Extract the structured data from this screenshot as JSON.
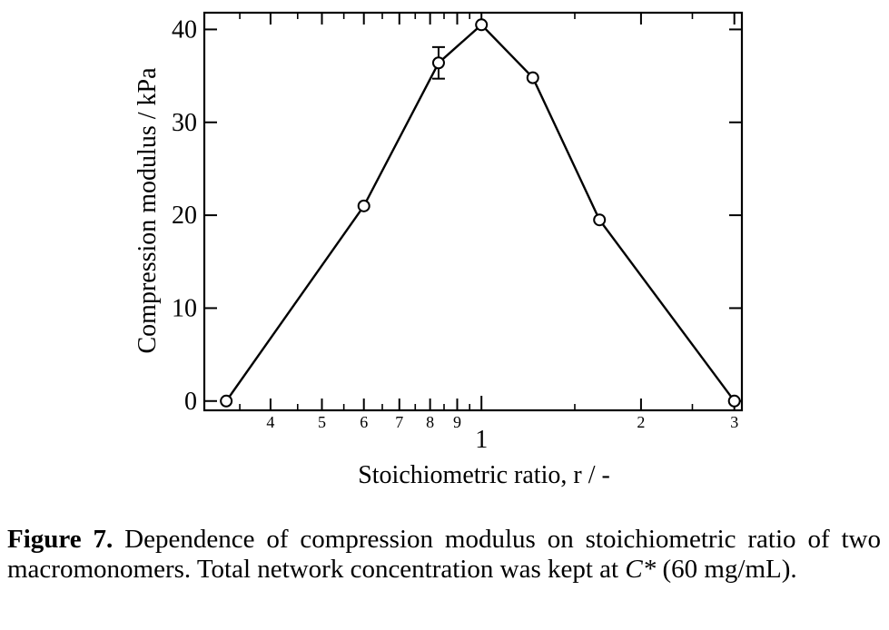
{
  "chart_data": {
    "type": "line",
    "xscale": "log",
    "xlabel": "Stoichiometric ratio, r / -",
    "ylabel": "Compression modulus / kPa",
    "xlim": [
      0.3,
      3.1
    ],
    "ylim": [
      -1,
      41.8
    ],
    "xticks_major": [
      {
        "value": 0.4,
        "label": "4"
      },
      {
        "value": 0.5,
        "label": "5"
      },
      {
        "value": 0.6,
        "label": "6"
      },
      {
        "value": 0.7,
        "label": "7"
      },
      {
        "value": 0.8,
        "label": "8"
      },
      {
        "value": 0.9,
        "label": "9"
      },
      {
        "value": 1.0,
        "label": "1"
      },
      {
        "value": 2.0,
        "label": "2"
      },
      {
        "value": 3.0,
        "label": "3"
      }
    ],
    "xticks_minor": [
      0.35,
      0.45,
      0.55,
      0.65,
      0.75,
      0.85,
      0.95,
      1.5,
      2.5
    ],
    "yticks": [
      0,
      10,
      20,
      30,
      40
    ],
    "series": [
      {
        "x": [
          0.33,
          0.6,
          0.83,
          1.0,
          1.25,
          1.67,
          3.0
        ],
        "y": [
          0,
          21.0,
          36.4,
          40.5,
          34.8,
          19.5,
          0
        ],
        "yerr": [
          0,
          0,
          1.7,
          0,
          0,
          0,
          0
        ],
        "marker": "open-circle",
        "color": "#000000"
      }
    ]
  },
  "caption": {
    "label": "Figure 7.",
    "text_before": " Dependence of compression modulus on stoichiometric ratio of two macromonomers. Total network concentration was kept at ",
    "symbol": "C*",
    "text_after": " (60 mg/mL)."
  }
}
